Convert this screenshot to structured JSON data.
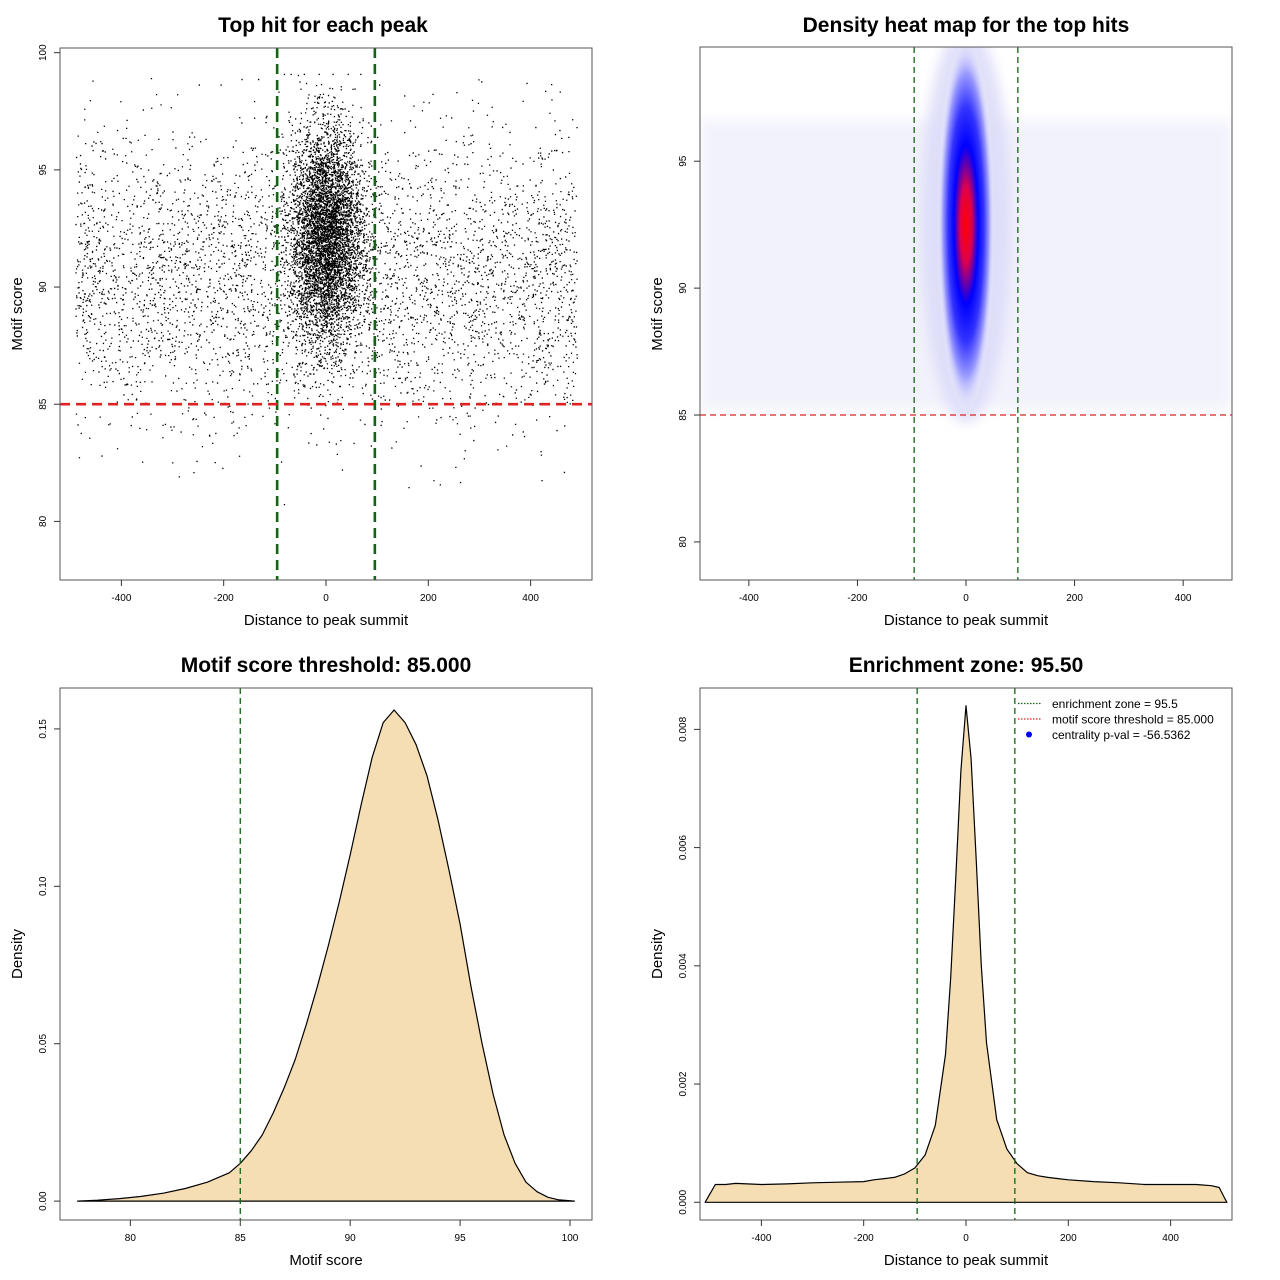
{
  "colors": {
    "point": "#000000",
    "threshold": "#dd2222",
    "zone": "#116611",
    "density_fill": "#f5deb3",
    "curve": "#000000",
    "heat_low": "#ffffff",
    "heat_mid": "#0000ff",
    "heat_high": "#ff0000",
    "legend_dot": "#0000ff"
  },
  "chart_data": [
    {
      "id": "scatter",
      "type": "scatter",
      "title": "Top hit for each peak",
      "xlabel": "Distance to peak summit",
      "ylabel": "Motif score",
      "xlim": [
        -520,
        520
      ],
      "ylim": [
        77.5,
        100.2
      ],
      "xticks": [
        -400,
        -200,
        0,
        200,
        400
      ],
      "yticks": [
        80,
        85,
        90,
        95,
        100
      ],
      "hlines": [
        85
      ],
      "vlines": [
        -95.5,
        95.5
      ],
      "point_distribution": {
        "background": {
          "x_range": [
            -490,
            490
          ],
          "y_mean": 90.5,
          "y_sd": 3.0,
          "y_min": 78.5,
          "y_max": 99.3
        },
        "central": {
          "x_mean": 0,
          "x_sd": 35,
          "y_mean": 92.2,
          "y_sd": 2.3,
          "y_min": 82.5,
          "y_max": 99.1
        }
      }
    },
    {
      "id": "heatmap",
      "type": "heatmap",
      "title": "Density heat map for the top hits",
      "xlabel": "Distance to peak summit",
      "ylabel": "Motif score",
      "xlim": [
        -490,
        490
      ],
      "ylim": [
        78.5,
        99.5
      ],
      "xticks": [
        -400,
        -200,
        0,
        200,
        400
      ],
      "yticks": [
        80,
        85,
        90,
        95
      ],
      "hlines": [
        85
      ],
      "vlines": [
        -95.5,
        95.5
      ],
      "hotspot": {
        "x": 0,
        "y": 92.5,
        "x_sd": 24,
        "y_sd": 2.4
      }
    },
    {
      "id": "score-density",
      "type": "area",
      "title": "Motif score threshold: 85.000",
      "xlabel": "Motif score",
      "ylabel": "Density",
      "xlim": [
        76.8,
        101
      ],
      "ylim": [
        -0.006,
        0.163
      ],
      "xticks": [
        80,
        85,
        90,
        95,
        100
      ],
      "yticks": [
        0.0,
        0.05,
        0.1,
        0.15
      ],
      "ytick_labels": [
        "0.00",
        "0.05",
        "0.10",
        "0.15"
      ],
      "vlines": [
        85
      ],
      "x": [
        77.6,
        78.5,
        79.5,
        80.5,
        81.5,
        82.5,
        83.5,
        84.5,
        85.0,
        85.5,
        86.0,
        86.5,
        87.0,
        87.5,
        88.0,
        88.5,
        89.0,
        89.5,
        90.0,
        90.5,
        91.0,
        91.5,
        92.0,
        92.5,
        93.0,
        93.5,
        94.0,
        94.5,
        95.0,
        95.5,
        96.0,
        96.5,
        97.0,
        97.5,
        98.0,
        98.5,
        99.0,
        99.5,
        100.2
      ],
      "y": [
        0.0,
        0.0003,
        0.0008,
        0.0015,
        0.0025,
        0.004,
        0.006,
        0.009,
        0.012,
        0.016,
        0.021,
        0.028,
        0.036,
        0.045,
        0.056,
        0.068,
        0.081,
        0.095,
        0.11,
        0.126,
        0.141,
        0.152,
        0.156,
        0.152,
        0.145,
        0.135,
        0.121,
        0.105,
        0.088,
        0.068,
        0.05,
        0.034,
        0.021,
        0.012,
        0.006,
        0.003,
        0.0012,
        0.0004,
        0.0
      ]
    },
    {
      "id": "distance-density",
      "type": "area",
      "title": "Enrichment zone: 95.50",
      "xlabel": "Distance to peak summit",
      "ylabel": "Density",
      "xlim": [
        -520,
        520
      ],
      "ylim": [
        -0.0003,
        0.0087
      ],
      "xticks": [
        -400,
        -200,
        0,
        200,
        400
      ],
      "yticks": [
        0.0,
        0.002,
        0.004,
        0.006,
        0.008
      ],
      "ytick_labels": [
        "0.000",
        "0.002",
        "0.004",
        "0.006",
        "0.008"
      ],
      "vlines": [
        -95.5,
        95.5
      ],
      "x": [
        -510,
        -500,
        -490,
        -470,
        -450,
        -400,
        -350,
        -300,
        -250,
        -200,
        -180,
        -160,
        -140,
        -120,
        -100,
        -80,
        -60,
        -40,
        -30,
        -20,
        -10,
        0,
        10,
        20,
        30,
        40,
        60,
        80,
        100,
        120,
        140,
        160,
        180,
        200,
        250,
        300,
        350,
        400,
        450,
        480,
        495,
        505,
        510
      ],
      "y": [
        0.0,
        0.00015,
        0.0003,
        0.0003,
        0.00032,
        0.0003,
        0.00031,
        0.00033,
        0.00034,
        0.00035,
        0.00038,
        0.0004,
        0.00042,
        0.00048,
        0.00058,
        0.0008,
        0.0013,
        0.0025,
        0.0038,
        0.0055,
        0.0073,
        0.0084,
        0.0075,
        0.0058,
        0.004,
        0.0027,
        0.0014,
        0.0009,
        0.00065,
        0.0005,
        0.00045,
        0.00042,
        0.0004,
        0.00038,
        0.00035,
        0.00033,
        0.0003,
        0.0003,
        0.0003,
        0.00028,
        0.00025,
        8e-05,
        0.0
      ],
      "legend": {
        "position": "top-right",
        "entries": [
          {
            "label": "enrichment zone = 95.5",
            "style": "dotted-line",
            "color": "#116611"
          },
          {
            "label": "motif score threshold = 85.000",
            "style": "dotted-line",
            "color": "#dd2222"
          },
          {
            "label": "centrality p-val = -56.5362",
            "style": "dot",
            "color": "#0000ff"
          }
        ]
      }
    }
  ]
}
